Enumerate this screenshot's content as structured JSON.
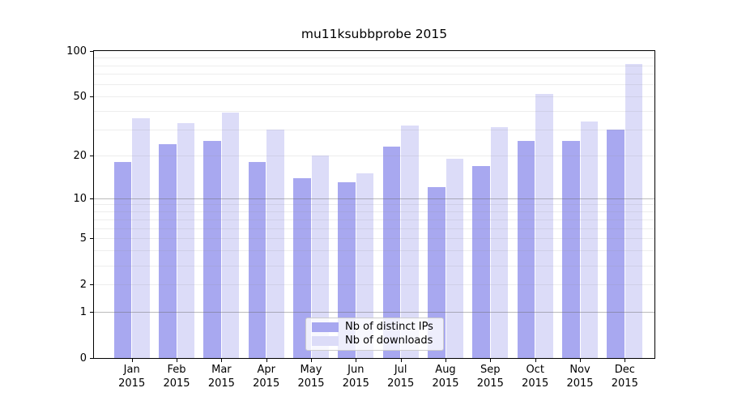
{
  "title": "mu11ksubbprobe 2015",
  "chart_data": {
    "type": "bar",
    "title": "mu11ksubbprobe 2015",
    "categories": [
      "Jan",
      "Feb",
      "Mar",
      "Apr",
      "May",
      "Jun",
      "Jul",
      "Aug",
      "Sep",
      "Oct",
      "Nov",
      "Dec"
    ],
    "year": "2015",
    "series": [
      {
        "name": "Nb of distinct IPs",
        "color": "#a8a8f0",
        "values": [
          18,
          24,
          25,
          18,
          14,
          13,
          23,
          12,
          17,
          25,
          25,
          30
        ]
      },
      {
        "name": "Nb of downloads",
        "color": "#dcdcf8",
        "values": [
          36,
          33,
          39,
          30,
          20,
          15,
          32,
          19,
          31,
          52,
          34,
          82
        ]
      }
    ],
    "xlabel": "",
    "ylabel": "",
    "ylim": [
      0,
      100
    ],
    "yscale": "log1p",
    "ytick_values": [
      100,
      50,
      20,
      10,
      5,
      2,
      1,
      0
    ],
    "ytick_labels": [
      "100",
      "50",
      "20",
      "10",
      "5",
      "2",
      "1",
      "0"
    ],
    "grid": true,
    "minor_gridline_values": [
      2,
      3,
      4,
      5,
      6,
      7,
      8,
      9,
      20,
      30,
      40,
      50,
      60,
      70,
      80,
      90
    ],
    "major_gridline_values": [
      1,
      10
    ],
    "legend_position": "lower center",
    "bar_group_width_fraction": 0.8
  },
  "colors": {
    "distinct_ips_bar": "#a8a8f0",
    "downloads_bar": "#dcdcf8",
    "spine": "#000000",
    "minor_grid": "#ebebeb",
    "major_grid": "#c6c6c6",
    "legend_border": "#cccccc"
  }
}
